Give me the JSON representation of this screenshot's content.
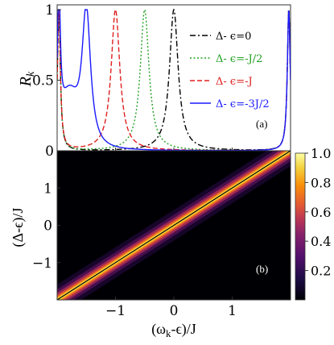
{
  "chart_data": [
    {
      "type": "line",
      "panel_label": "(a)",
      "ylabel": "R",
      "ylabel_sub": "k",
      "xlim": [
        -2,
        2
      ],
      "ylim": [
        0,
        1
      ],
      "y_ticks": [
        "0",
        "0.5",
        "1"
      ],
      "legend_position": "top-right",
      "series": [
        {
          "name": "Δ- ϵ=0",
          "color": "#000000",
          "dash": "dashdot",
          "peak_x": 0,
          "edge_x": [
            -1.97,
            1.97
          ]
        },
        {
          "name": "Δ- ϵ=-J/2",
          "color": "#22a022",
          "dash": "dotted",
          "peak_x": -0.5,
          "edge_x": [
            -1.97,
            1.97
          ]
        },
        {
          "name": "Δ- ϵ=-J",
          "color": "#e02020",
          "dash": "dashed",
          "peak_x": -1.0,
          "edge_x": [
            -1.97,
            1.97
          ]
        },
        {
          "name": "Δ- ϵ=-3J/2",
          "color": "#1a1aff",
          "dash": "solid",
          "peak_x": -1.5,
          "edge_x": [
            -1.97,
            1.97
          ]
        }
      ]
    },
    {
      "type": "heatmap",
      "panel_label": "(b)",
      "xlabel": "(ω",
      "xlabel_sub": "k",
      "xlabel_rest": "-ϵ)/J",
      "ylabel": "(Δ-ϵ)/J",
      "xlim": [
        -2,
        2
      ],
      "ylim": [
        -2,
        2
      ],
      "x_ticks": [
        "−1",
        "0",
        "1"
      ],
      "x_tick_values": [
        -1,
        0,
        1
      ],
      "y_ticks": [
        "−1",
        "0",
        "1"
      ],
      "y_tick_values": [
        -1,
        0,
        1
      ],
      "colorbar": {
        "min": 0,
        "max": 1,
        "ticks": [
          "1.0",
          "0.8",
          "0.6",
          "0.4",
          "0.2"
        ],
        "tick_values": [
          1.0,
          0.8,
          0.6,
          0.4,
          0.2
        ],
        "colormap": "inferno"
      },
      "reference_line": "y = x"
    }
  ]
}
